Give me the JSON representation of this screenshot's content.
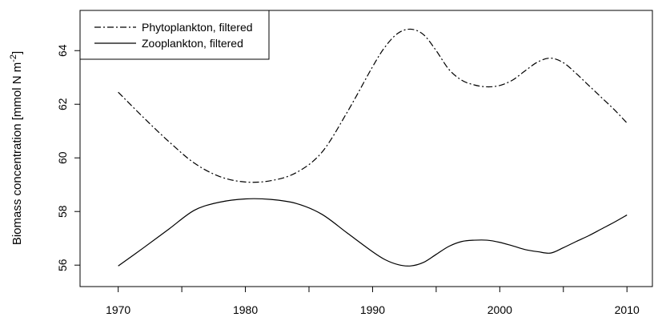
{
  "chart_data": {
    "type": "line",
    "title": "",
    "xlabel": "",
    "ylabel": "Biomass concentration [mmol N m",
    "ylabel_superscript": "-2",
    "ylabel_close": "]",
    "xlim": [
      1967,
      2012
    ],
    "ylim": [
      55.2,
      65.5
    ],
    "x_ticks": [
      1970,
      1975,
      1980,
      1985,
      1990,
      1995,
      2000,
      2005,
      2010
    ],
    "x_tick_labels": [
      "1970",
      "",
      "1980",
      "",
      "1990",
      "",
      "2000",
      "",
      "2010"
    ],
    "y_ticks": [
      56,
      58,
      60,
      62,
      64
    ],
    "y_tick_labels": [
      "56",
      "58",
      "60",
      "62",
      "64"
    ],
    "grid": false,
    "legend_position": "top-left",
    "series": [
      {
        "name": "Phytoplankton, filtered",
        "line_style": "dashdot",
        "color": "#000000",
        "x": [
          1970,
          1972,
          1974,
          1976,
          1978,
          1980,
          1982,
          1984,
          1986,
          1988,
          1990,
          1991,
          1992,
          1993,
          1994,
          1995,
          1996,
          1997,
          1998,
          1999,
          2000,
          2001,
          2002,
          2003,
          2004,
          2005,
          2006,
          2007,
          2008,
          2009,
          2010
        ],
        "values": [
          62.45,
          61.5,
          60.6,
          59.8,
          59.3,
          59.1,
          59.15,
          59.45,
          60.2,
          61.7,
          63.4,
          64.15,
          64.65,
          64.8,
          64.6,
          64.0,
          63.3,
          62.9,
          62.72,
          62.65,
          62.7,
          62.9,
          63.25,
          63.58,
          63.72,
          63.55,
          63.15,
          62.7,
          62.25,
          61.8,
          61.3
        ]
      },
      {
        "name": "Zooplankton, filtered",
        "line_style": "solid",
        "color": "#000000",
        "x": [
          1970,
          1972,
          1974,
          1976,
          1978,
          1980,
          1982,
          1984,
          1986,
          1988,
          1990,
          1991,
          1992,
          1993,
          1994,
          1995,
          1996,
          1997,
          1998,
          1999,
          2000,
          2001,
          2002,
          2003,
          2004,
          2005,
          2006,
          2007,
          2008,
          2009,
          2010
        ],
        "values": [
          55.97,
          56.65,
          57.35,
          58.05,
          58.35,
          58.47,
          58.45,
          58.3,
          57.9,
          57.2,
          56.5,
          56.2,
          56.02,
          55.97,
          56.1,
          56.4,
          56.7,
          56.88,
          56.93,
          56.93,
          56.85,
          56.72,
          56.58,
          56.5,
          56.45,
          56.65,
          56.88,
          57.1,
          57.35,
          57.6,
          57.87
        ]
      }
    ]
  }
}
